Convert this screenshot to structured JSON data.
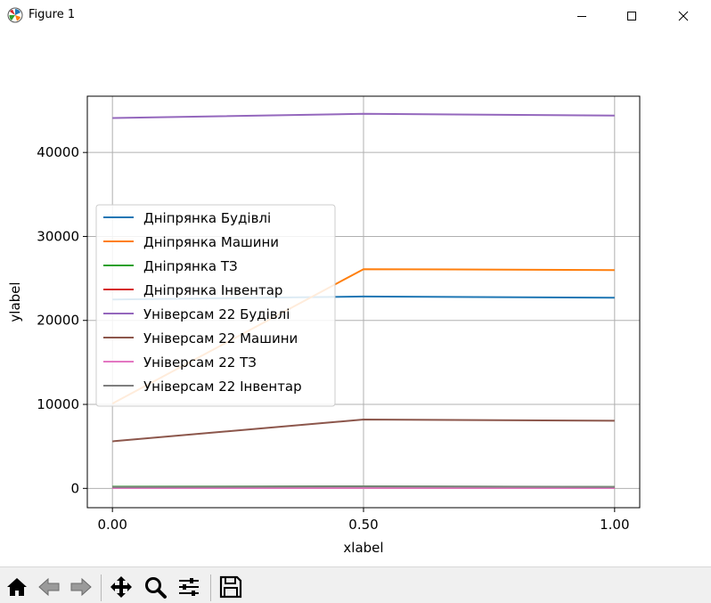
{
  "window": {
    "title": "Figure 1",
    "icons": [
      "matplotlib-logo-icon",
      "minimize-icon",
      "maximize-icon",
      "close-icon"
    ]
  },
  "toolbar": {
    "buttons": [
      "home-icon",
      "back-icon",
      "forward-icon",
      "pan-icon",
      "zoom-icon",
      "configure-subplots-icon",
      "save-icon"
    ]
  },
  "chart_data": {
    "type": "line",
    "title": "",
    "xlabel": "xlabel",
    "ylabel": "ylabel",
    "xlim": [
      -0.05,
      1.05
    ],
    "ylim": [
      -2300,
      46700
    ],
    "x_ticks": [
      0.0,
      0.5,
      1.0
    ],
    "x_tick_labels": [
      "0.00",
      "0.50",
      "1.00"
    ],
    "y_ticks": [
      0,
      10000,
      20000,
      30000,
      40000
    ],
    "y_tick_labels": [
      "0",
      "10000",
      "20000",
      "30000",
      "40000"
    ],
    "grid": true,
    "legend_position": "center-left",
    "x": [
      0.0,
      0.5,
      1.0
    ],
    "series": [
      {
        "name": "Дніпрянка Будівлі",
        "color": "#1f77b4",
        "values": [
          22500,
          22850,
          22700
        ]
      },
      {
        "name": "Дніпрянка Машини",
        "color": "#ff7f0e",
        "values": [
          10100,
          26100,
          26000
        ]
      },
      {
        "name": "Дніпрянка ТЗ",
        "color": "#2ca02c",
        "values": [
          200,
          250,
          180
        ]
      },
      {
        "name": "Дніпрянка Інвентар",
        "color": "#d62728",
        "values": [
          50,
          60,
          55
        ]
      },
      {
        "name": "Універсам 22 Будівлі",
        "color": "#9467bd",
        "values": [
          44100,
          44600,
          44400
        ]
      },
      {
        "name": "Універсам 22 Машини",
        "color": "#8c564b",
        "values": [
          5600,
          8200,
          8050
        ]
      },
      {
        "name": "Універсам 22 ТЗ",
        "color": "#e377c2",
        "values": [
          30,
          40,
          35
        ]
      },
      {
        "name": "Універсам 22 Інвентар",
        "color": "#7f7f7f",
        "values": [
          150,
          220,
          160
        ]
      }
    ]
  }
}
